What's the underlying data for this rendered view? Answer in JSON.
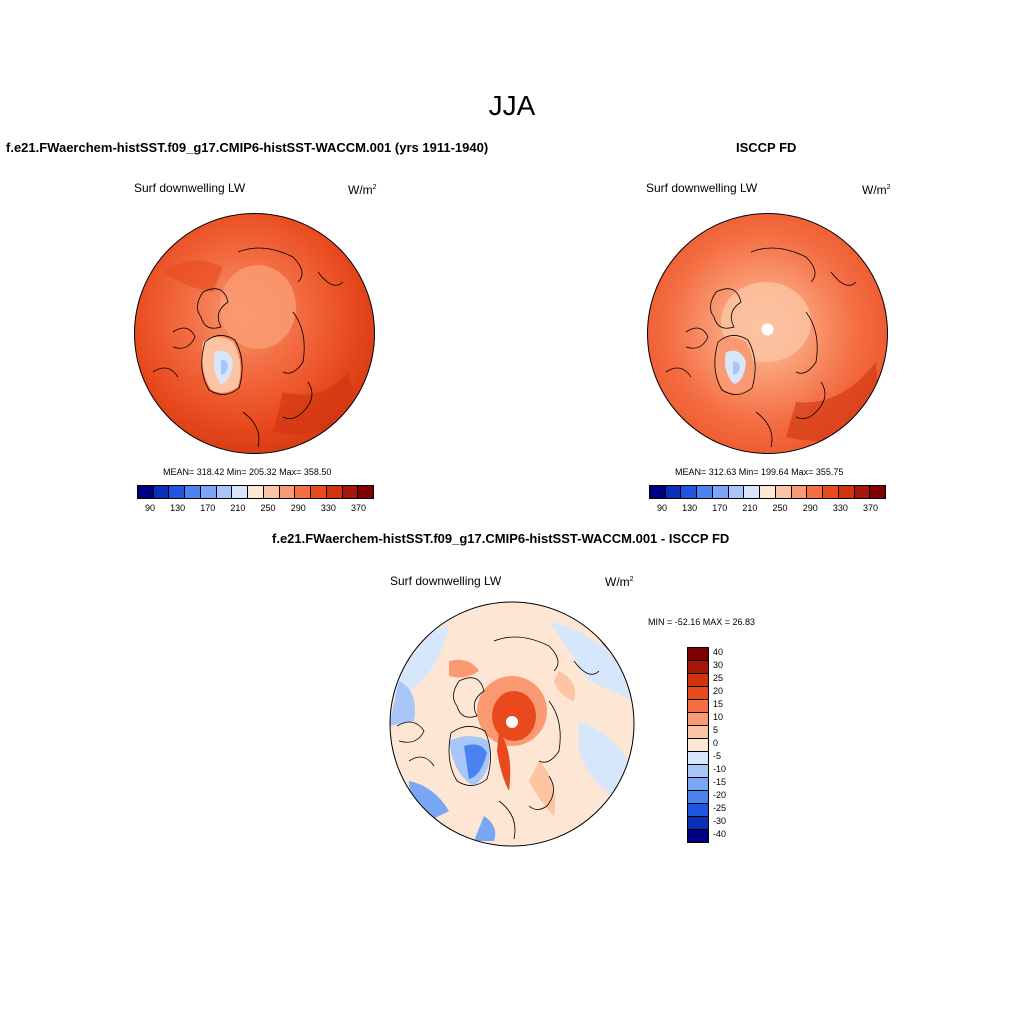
{
  "main_title": "JJA",
  "panels": [
    {
      "title": "f.e21.FWaerchem-histSST.f09_g17.CMIP6-histSST-WACCM.001 (yrs 1911-1940)",
      "subtitle_left": "Surf downwelling LW",
      "units_base": "W/m",
      "units_sup": "2",
      "stats": "MEAN= 318.42  Min= 205.32  Max= 358.50",
      "colorbar_ticks": [
        "90",
        "130",
        "170",
        "210",
        "250",
        "290",
        "330",
        "370"
      ]
    },
    {
      "title": "ISCCP FD",
      "subtitle_left": "Surf downwelling LW",
      "units_base": "W/m",
      "units_sup": "2",
      "stats": "MEAN= 312.63  Min= 199.64  Max= 355.75",
      "colorbar_ticks": [
        "90",
        "130",
        "170",
        "210",
        "250",
        "290",
        "330",
        "370"
      ]
    },
    {
      "title": "f.e21.FWaerchem-histSST.f09_g17.CMIP6-histSST-WACCM.001 - ISCCP FD",
      "subtitle_left": "Surf downwelling LW",
      "units_base": "W/m",
      "units_sup": "2",
      "stats": "MIN = -52.16 MAX =  26.83",
      "colorbar_ticks": [
        "40",
        "30",
        "25",
        "20",
        "15",
        "10",
        "5",
        "0",
        "-5",
        "-10",
        "-15",
        "-20",
        "-25",
        "-30",
        "-40"
      ]
    }
  ],
  "abs_colors": [
    "#00007f",
    "#0a2fb5",
    "#1f55e0",
    "#4a82f0",
    "#7aa7f5",
    "#a9c6f8",
    "#d6e6fb",
    "#fde6d3",
    "#fcc4a3",
    "#f99a72",
    "#f46d43",
    "#e84a1e",
    "#d1330f",
    "#a6170a",
    "#7f0000"
  ],
  "diff_colors": [
    "#7f0000",
    "#a6170a",
    "#d1330f",
    "#e84a1e",
    "#f46d43",
    "#f99a72",
    "#fcc4a3",
    "#fde6d3",
    "#d6e6fb",
    "#a9c6f8",
    "#7aa7f5",
    "#4a82f0",
    "#1f55e0",
    "#0a2fb5",
    "#00007f"
  ]
}
